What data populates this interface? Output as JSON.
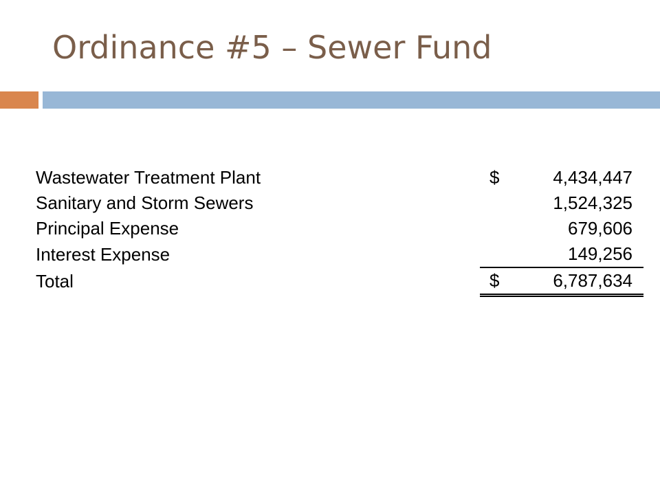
{
  "slide": {
    "title": "Ordinance #5 – Sewer Fund"
  },
  "theme": {
    "title_color": "#7a5e4a",
    "accent_orange": "#d9864e",
    "accent_blue": "#98b7d6"
  },
  "table": {
    "rows": [
      {
        "label": "Wastewater Treatment Plant",
        "currency": "$",
        "amount": "4,434,447"
      },
      {
        "label": "Sanitary and Storm Sewers",
        "currency": "",
        "amount": "1,524,325"
      },
      {
        "label": "Principal Expense",
        "currency": "",
        "amount": "679,606"
      },
      {
        "label": "Interest Expense",
        "currency": "",
        "amount": "149,256"
      }
    ],
    "total": {
      "label": "Total",
      "currency": "$",
      "amount": "6,787,634"
    }
  }
}
